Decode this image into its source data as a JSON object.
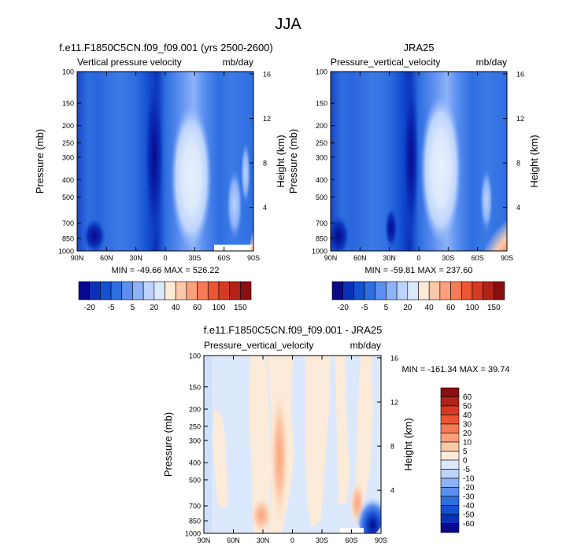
{
  "figure": {
    "title": "JJA"
  },
  "chart_data": [
    {
      "type": "heatmap",
      "title": "f.e11.F1850C5CN.f09_f09.001 (yrs 2500-2600)",
      "left_subtitle": "Vertical pressure velocity",
      "right_subtitle": "mb/day",
      "ylabel": "Pressure (mb)",
      "ylabel_right": "Height (km)",
      "x_ticks": [
        "90N",
        "60N",
        "30N",
        "0",
        "30S",
        "60S",
        "90S"
      ],
      "y_ticks": [
        "100",
        "150",
        "200",
        "250",
        "300",
        "400",
        "500",
        "700",
        "850",
        "1000"
      ],
      "y_ticks_right": [
        "16",
        "12",
        "8",
        "4"
      ],
      "xlim": [
        90,
        -90
      ],
      "ylim": [
        1000,
        100
      ],
      "y_scale": "log",
      "stats": "MIN = -49.66   MAX = 526.22",
      "colorbar": {
        "orientation": "horizontal",
        "labels": [
          "-20",
          "-5",
          "5",
          "20",
          "40",
          "60",
          "100",
          "150"
        ],
        "colors": [
          "#08088c",
          "#0a30b8",
          "#1450d2",
          "#2e6ee0",
          "#5a8ef0",
          "#8cb2f8",
          "#bcd4fb",
          "#dce8fc",
          "#fcebd9",
          "#fcc9a8",
          "#fca07c",
          "#f77a56",
          "#ec5434",
          "#d63a24",
          "#b22218",
          "#8a0f10"
        ]
      }
    },
    {
      "type": "heatmap",
      "title": "JRA25",
      "left_subtitle": "Pressure_vertical_velocity",
      "right_subtitle": "mb/day",
      "ylabel": "Pressure (mb)",
      "ylabel_right": "Height (km)",
      "x_ticks": [
        "90N",
        "60N",
        "30N",
        "0",
        "30S",
        "60S",
        "90S"
      ],
      "y_ticks": [
        "100",
        "150",
        "200",
        "250",
        "300",
        "400",
        "500",
        "700",
        "850",
        "1000"
      ],
      "y_ticks_right": [
        "16",
        "12",
        "8",
        "4"
      ],
      "xlim": [
        90,
        -90
      ],
      "ylim": [
        1000,
        100
      ],
      "y_scale": "log",
      "stats": "MIN = -59.81   MAX = 237.60",
      "colorbar": {
        "orientation": "horizontal",
        "labels": [
          "-20",
          "-5",
          "5",
          "20",
          "40",
          "60",
          "100",
          "150"
        ],
        "colors": [
          "#08088c",
          "#0a30b8",
          "#1450d2",
          "#2e6ee0",
          "#5a8ef0",
          "#8cb2f8",
          "#bcd4fb",
          "#dce8fc",
          "#fcebd9",
          "#fcc9a8",
          "#fca07c",
          "#f77a56",
          "#ec5434",
          "#d63a24",
          "#b22218",
          "#8a0f10"
        ]
      }
    },
    {
      "type": "heatmap",
      "title": "f.e11.F1850C5CN.f09_f09.001 - JRA25",
      "left_subtitle": "Pressure_vertical_velocity",
      "right_subtitle": "mb/day",
      "ylabel": "Pressure (mb)",
      "ylabel_right": "Height (km)",
      "x_ticks": [
        "90N",
        "60N",
        "30N",
        "0",
        "30S",
        "60S",
        "90S"
      ],
      "y_ticks": [
        "100",
        "150",
        "200",
        "250",
        "300",
        "400",
        "500",
        "700",
        "850",
        "1000"
      ],
      "y_ticks_right": [
        "16",
        "12",
        "8",
        "4"
      ],
      "xlim": [
        90,
        -90
      ],
      "ylim": [
        1000,
        100
      ],
      "y_scale": "log",
      "stats": "MIN = -161.34   MAX =  39.74",
      "colorbar": {
        "orientation": "vertical",
        "labels": [
          "60",
          "50",
          "40",
          "30",
          "20",
          "10",
          "5",
          "0",
          "-5",
          "-10",
          "-20",
          "-30",
          "-40",
          "-50",
          "-60"
        ],
        "colors": [
          "#8a0f10",
          "#b22218",
          "#d63a24",
          "#ec5434",
          "#f77a56",
          "#fca07c",
          "#fcc9a8",
          "#fcebd9",
          "#dce8fc",
          "#bcd4fb",
          "#8cb2f8",
          "#5a8ef0",
          "#2e6ee0",
          "#1450d2",
          "#0a30b8",
          "#08088c"
        ]
      }
    }
  ]
}
